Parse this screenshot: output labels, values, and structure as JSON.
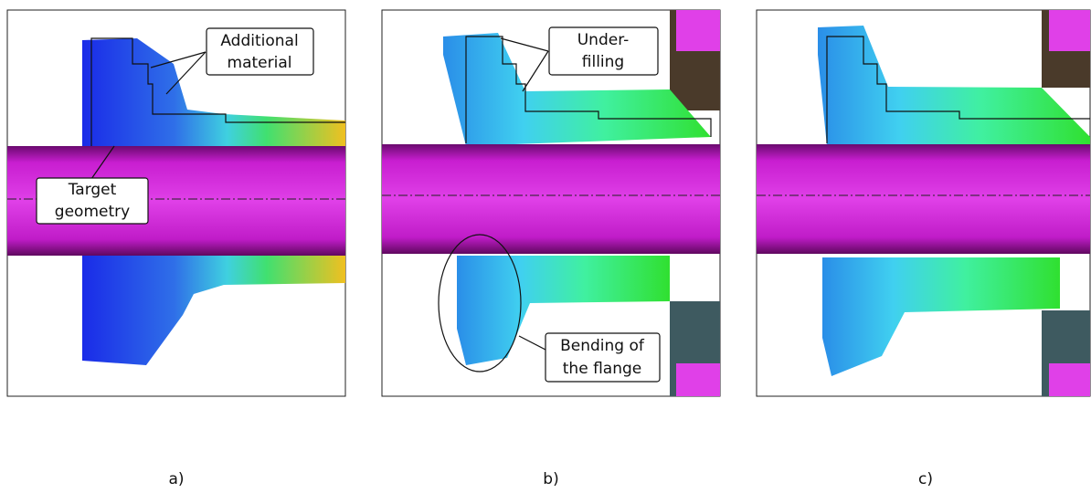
{
  "panels": [
    {
      "label": "a)",
      "annotations": [
        {
          "lines": [
            "Additional",
            "material"
          ]
        },
        {
          "lines": [
            "Target",
            "geometry"
          ]
        }
      ]
    },
    {
      "label": "b)",
      "annotations": [
        {
          "lines": [
            "Under-",
            "filling"
          ]
        },
        {
          "lines": [
            "Bending of",
            "the flange"
          ]
        }
      ]
    },
    {
      "label": "c)",
      "annotations": []
    }
  ]
}
